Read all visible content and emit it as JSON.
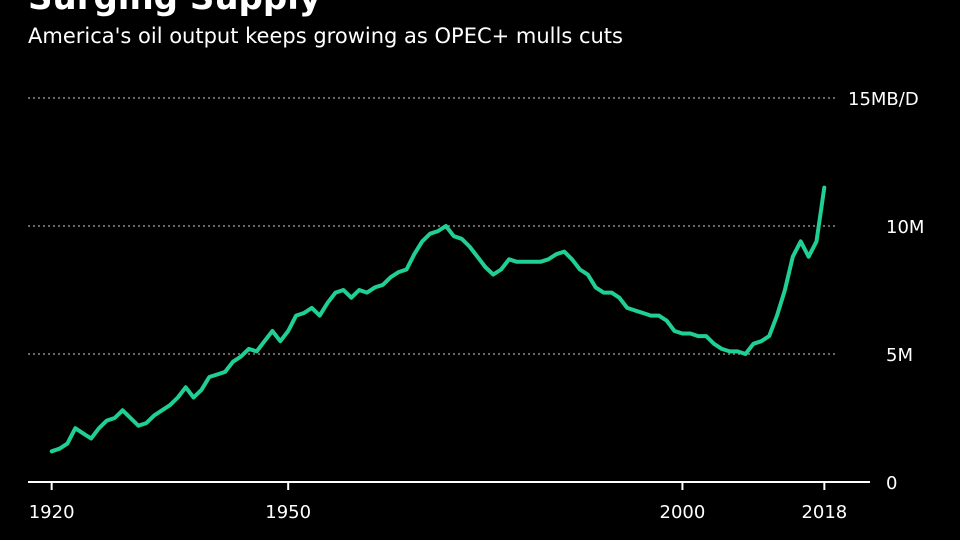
{
  "chart_data": {
    "type": "line",
    "title": "Surging Supply",
    "subtitle": "America's oil output keeps growing as OPEC+ mulls cuts",
    "xlabel": "",
    "ylabel": "",
    "xlim": [
      1917,
      2021
    ],
    "ylim": [
      0,
      15
    ],
    "grid": true,
    "x_ticks": [
      {
        "value": 1920,
        "label": "1920"
      },
      {
        "value": 1950,
        "label": "1950"
      },
      {
        "value": 2000,
        "label": "2000"
      },
      {
        "value": 2018,
        "label": "2018"
      }
    ],
    "y_ticks": [
      {
        "value": 15,
        "label": "15MB/D"
      },
      {
        "value": 10,
        "label": "10M"
      },
      {
        "value": 5,
        "label": "5M"
      },
      {
        "value": 0,
        "label": "0"
      }
    ],
    "series": [
      {
        "color": "#1fcf94",
        "x": [
          1920,
          1921,
          1922,
          1923,
          1924,
          1925,
          1926,
          1927,
          1928,
          1929,
          1930,
          1931,
          1932,
          1933,
          1934,
          1935,
          1936,
          1937,
          1938,
          1939,
          1940,
          1941,
          1942,
          1943,
          1944,
          1945,
          1946,
          1947,
          1948,
          1949,
          1950,
          1951,
          1952,
          1953,
          1954,
          1955,
          1956,
          1957,
          1958,
          1959,
          1960,
          1961,
          1962,
          1963,
          1964,
          1965,
          1966,
          1967,
          1968,
          1969,
          1970,
          1971,
          1972,
          1973,
          1974,
          1975,
          1976,
          1977,
          1978,
          1979,
          1980,
          1981,
          1982,
          1983,
          1984,
          1985,
          1986,
          1987,
          1988,
          1989,
          1990,
          1991,
          1992,
          1993,
          1994,
          1995,
          1996,
          1997,
          1998,
          1999,
          2000,
          2001,
          2002,
          2003,
          2004,
          2005,
          2006,
          2007,
          2008,
          2009,
          2010,
          2011,
          2012,
          2013,
          2014,
          2015,
          2016,
          2017,
          2018
        ],
        "values": [
          1.2,
          1.3,
          1.5,
          2.1,
          1.9,
          1.7,
          2.1,
          2.4,
          2.5,
          2.8,
          2.5,
          2.2,
          2.3,
          2.6,
          2.8,
          3.0,
          3.3,
          3.7,
          3.3,
          3.6,
          4.1,
          4.2,
          4.3,
          4.7,
          4.9,
          5.2,
          5.1,
          5.5,
          5.9,
          5.5,
          5.9,
          6.5,
          6.6,
          6.8,
          6.5,
          7.0,
          7.4,
          7.5,
          7.2,
          7.5,
          7.4,
          7.6,
          7.7,
          8.0,
          8.2,
          8.3,
          8.9,
          9.4,
          9.7,
          9.8,
          10.0,
          9.6,
          9.5,
          9.2,
          8.8,
          8.4,
          8.1,
          8.3,
          8.7,
          8.6,
          8.6,
          8.6,
          8.6,
          8.7,
          8.9,
          9.0,
          8.7,
          8.3,
          8.1,
          7.6,
          7.4,
          7.4,
          7.2,
          6.8,
          6.7,
          6.6,
          6.5,
          6.5,
          6.3,
          5.9,
          5.8,
          5.8,
          5.7,
          5.7,
          5.4,
          5.2,
          5.1,
          5.1,
          5.0,
          5.4,
          5.5,
          5.7,
          6.5,
          7.5,
          8.8,
          9.4,
          8.8,
          9.4,
          11.5
        ]
      }
    ]
  }
}
